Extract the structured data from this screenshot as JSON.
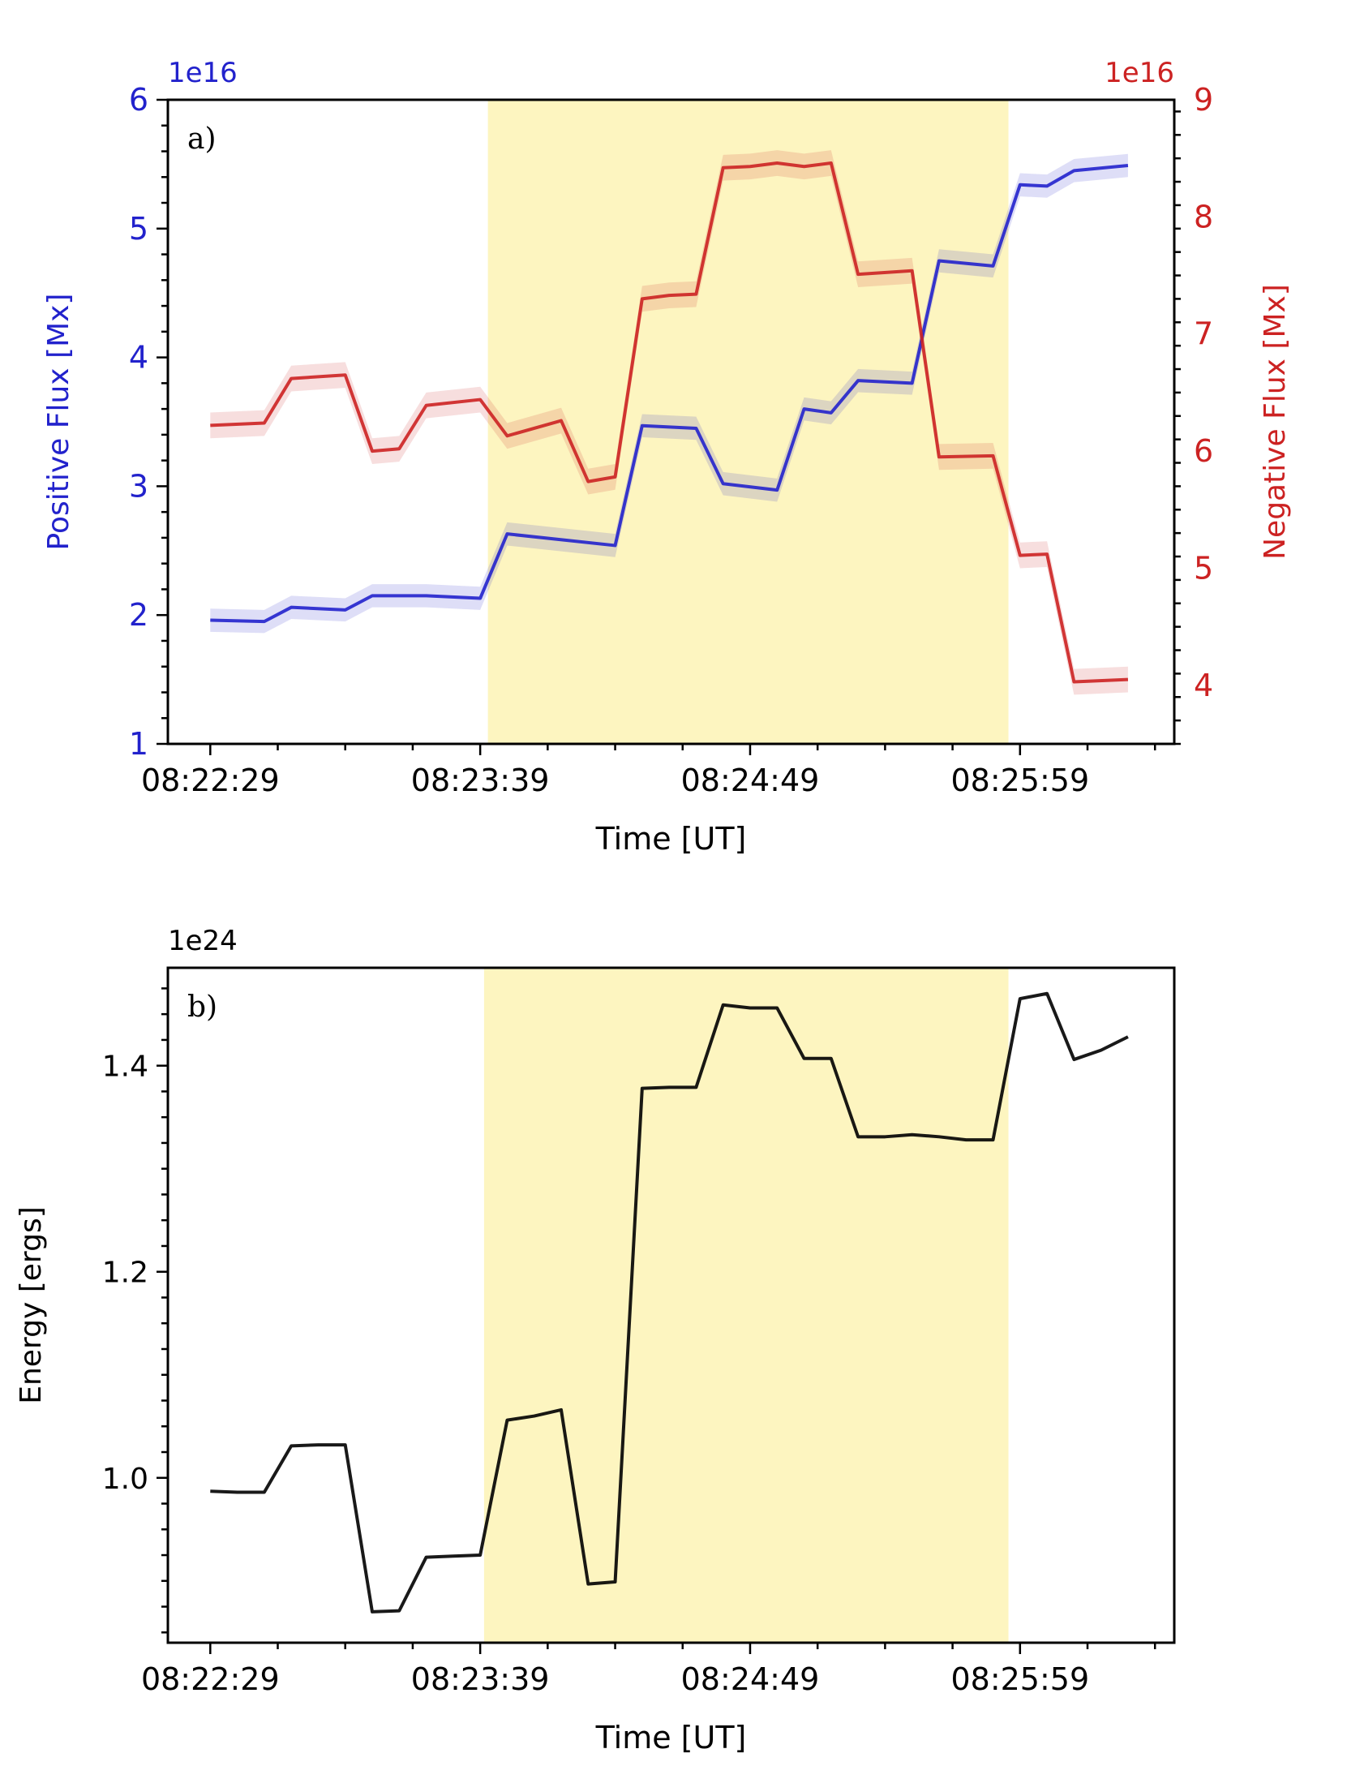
{
  "chart_data": [
    {
      "type": "line",
      "panel_label": "a)",
      "xlabel": "Time [UT]",
      "x_tick_labels": [
        "08:22:29",
        "08:23:39",
        "08:24:49",
        "08:25:59"
      ],
      "x_tick_seconds": [
        0,
        70,
        140,
        210
      ],
      "xlim_seconds": [
        -11,
        250
      ],
      "highlight_span_seconds": [
        72,
        207
      ],
      "highlight_color": "#fdf5c0",
      "y_left": {
        "label": "Positive Flux [Mx]",
        "multiplier": "1e16",
        "ylim": [
          1,
          6
        ],
        "ticks": [
          "1",
          "2",
          "3",
          "4",
          "5",
          "6"
        ],
        "color": "#2222cc"
      },
      "y_right": {
        "label": "Negative Flux [Mx]",
        "multiplier": "1e16",
        "ylim": [
          3.5,
          9
        ],
        "ticks": [
          "4",
          "5",
          "6",
          "7",
          "8",
          "9"
        ],
        "color": "#cc2222"
      },
      "series": [
        {
          "axis": "left",
          "color": "#2222cc",
          "points": [
            [
              0,
              1.96
            ],
            [
              14,
              1.95
            ],
            [
              21,
              2.06
            ],
            [
              35,
              2.04
            ],
            [
              42,
              2.15
            ],
            [
              56,
              2.15
            ],
            [
              70,
              2.13
            ],
            [
              77,
              2.63
            ],
            [
              105,
              2.54
            ],
            [
              112,
              3.47
            ],
            [
              126,
              3.45
            ],
            [
              133,
              3.02
            ],
            [
              147,
              2.97
            ],
            [
              154,
              3.6
            ],
            [
              161,
              3.57
            ],
            [
              168,
              3.82
            ],
            [
              182,
              3.8
            ],
            [
              189,
              4.75
            ],
            [
              203,
              4.71
            ],
            [
              210,
              5.34
            ],
            [
              217,
              5.33
            ],
            [
              224,
              5.45
            ],
            [
              238,
              5.49
            ]
          ],
          "band": 0.09
        },
        {
          "axis": "right",
          "color": "#cc2222",
          "points": [
            [
              0,
              6.22
            ],
            [
              14,
              6.24
            ],
            [
              21,
              6.62
            ],
            [
              35,
              6.65
            ],
            [
              42,
              6.0
            ],
            [
              49,
              6.02
            ],
            [
              56,
              6.39
            ],
            [
              70,
              6.44
            ],
            [
              77,
              6.13
            ],
            [
              91,
              6.26
            ],
            [
              98,
              5.74
            ],
            [
              105,
              5.78
            ],
            [
              112,
              7.3
            ],
            [
              119,
              7.33
            ],
            [
              126,
              7.34
            ],
            [
              133,
              8.42
            ],
            [
              140,
              8.43
            ],
            [
              147,
              8.46
            ],
            [
              154,
              8.43
            ],
            [
              161,
              8.46
            ],
            [
              168,
              7.51
            ],
            [
              182,
              7.54
            ],
            [
              189,
              5.95
            ],
            [
              203,
              5.96
            ],
            [
              210,
              5.11
            ],
            [
              217,
              5.12
            ],
            [
              224,
              4.03
            ],
            [
              238,
              4.05
            ]
          ],
          "band": 0.11
        }
      ]
    },
    {
      "type": "line",
      "panel_label": "b)",
      "xlabel": "Time [UT]",
      "x_tick_labels": [
        "08:22:29",
        "08:23:39",
        "08:24:49",
        "08:25:59"
      ],
      "x_tick_seconds": [
        0,
        70,
        140,
        210
      ],
      "xlim_seconds": [
        -11,
        250
      ],
      "highlight_span_seconds": [
        71,
        207
      ],
      "highlight_color": "#fdf5c0",
      "y_left": {
        "label": "Energy [ergs]",
        "multiplier": "1e24",
        "ylim": [
          0.84,
          1.495
        ],
        "ticks": [
          "1.0",
          "1.2",
          "1.4"
        ],
        "tick_values": [
          1.0,
          1.2,
          1.4
        ],
        "color": "#000000"
      },
      "series": [
        {
          "axis": "left",
          "color": "#000000",
          "points": [
            [
              0,
              0.987
            ],
            [
              7,
              0.986
            ],
            [
              14,
              0.986
            ],
            [
              21,
              1.031
            ],
            [
              28,
              1.032
            ],
            [
              35,
              1.032
            ],
            [
              42,
              0.87
            ],
            [
              49,
              0.871
            ],
            [
              56,
              0.923
            ],
            [
              63,
              0.924
            ],
            [
              70,
              0.925
            ],
            [
              77,
              1.056
            ],
            [
              84,
              1.06
            ],
            [
              91,
              1.066
            ],
            [
              98,
              0.897
            ],
            [
              105,
              0.899
            ],
            [
              112,
              1.378
            ],
            [
              119,
              1.379
            ],
            [
              126,
              1.379
            ],
            [
              133,
              1.459
            ],
            [
              140,
              1.456
            ],
            [
              147,
              1.456
            ],
            [
              154,
              1.407
            ],
            [
              161,
              1.407
            ],
            [
              168,
              1.331
            ],
            [
              175,
              1.331
            ],
            [
              182,
              1.333
            ],
            [
              189,
              1.331
            ],
            [
              196,
              1.328
            ],
            [
              203,
              1.328
            ],
            [
              210,
              1.465
            ],
            [
              217,
              1.47
            ],
            [
              224,
              1.406
            ],
            [
              231,
              1.415
            ],
            [
              238,
              1.428
            ]
          ]
        }
      ]
    }
  ]
}
